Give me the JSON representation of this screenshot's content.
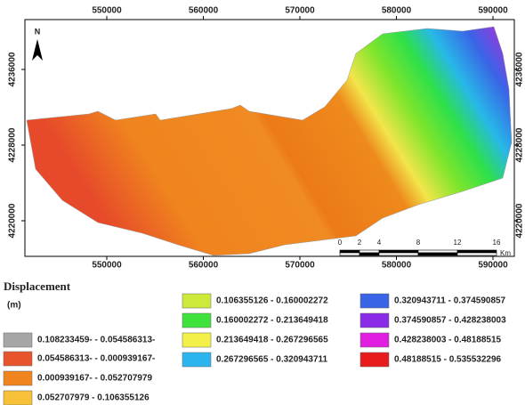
{
  "map": {
    "x_ticks": [
      550000,
      560000,
      570000,
      580000,
      590000
    ],
    "y_ticks": [
      4236000,
      4228000,
      4220000
    ],
    "north": "N",
    "scale_ticks": [
      0,
      2,
      4,
      8,
      12,
      16
    ],
    "scale_unit": "Km"
  },
  "legend": {
    "title": "Displacement",
    "unit": "(m)",
    "items": [
      {
        "label": "0.108233459- - 0.054586313-",
        "color": "#a6a6a6"
      },
      {
        "label": "0.054586313- - 0.000939167-",
        "color": "#e8542c"
      },
      {
        "label": "0.000939167- - 0.052707979",
        "color": "#f0841e"
      },
      {
        "label": "0.052707979 - 0.106355126",
        "color": "#f7c23a"
      },
      {
        "label": "0.106355126 - 0.160002272",
        "color": "#cdea3a"
      },
      {
        "label": "0.160002272 - 0.213649418",
        "color": "#3fe23a"
      },
      {
        "label": "0.213649418 - 0.267296565",
        "color": "#f4f04a"
      },
      {
        "label": "0.267296565 - 0.320943711",
        "color": "#2bb4ee"
      },
      {
        "label": "0.320943711 - 0.374590857",
        "color": "#3a64e6"
      },
      {
        "label": "0.374590857 - 0.428238003",
        "color": "#8a2be8"
      },
      {
        "label": "0.428238003 - 0.48188515",
        "color": "#e01ee0"
      },
      {
        "label": "0.48188515 - 0.535532296",
        "color": "#e81c1c"
      }
    ]
  }
}
